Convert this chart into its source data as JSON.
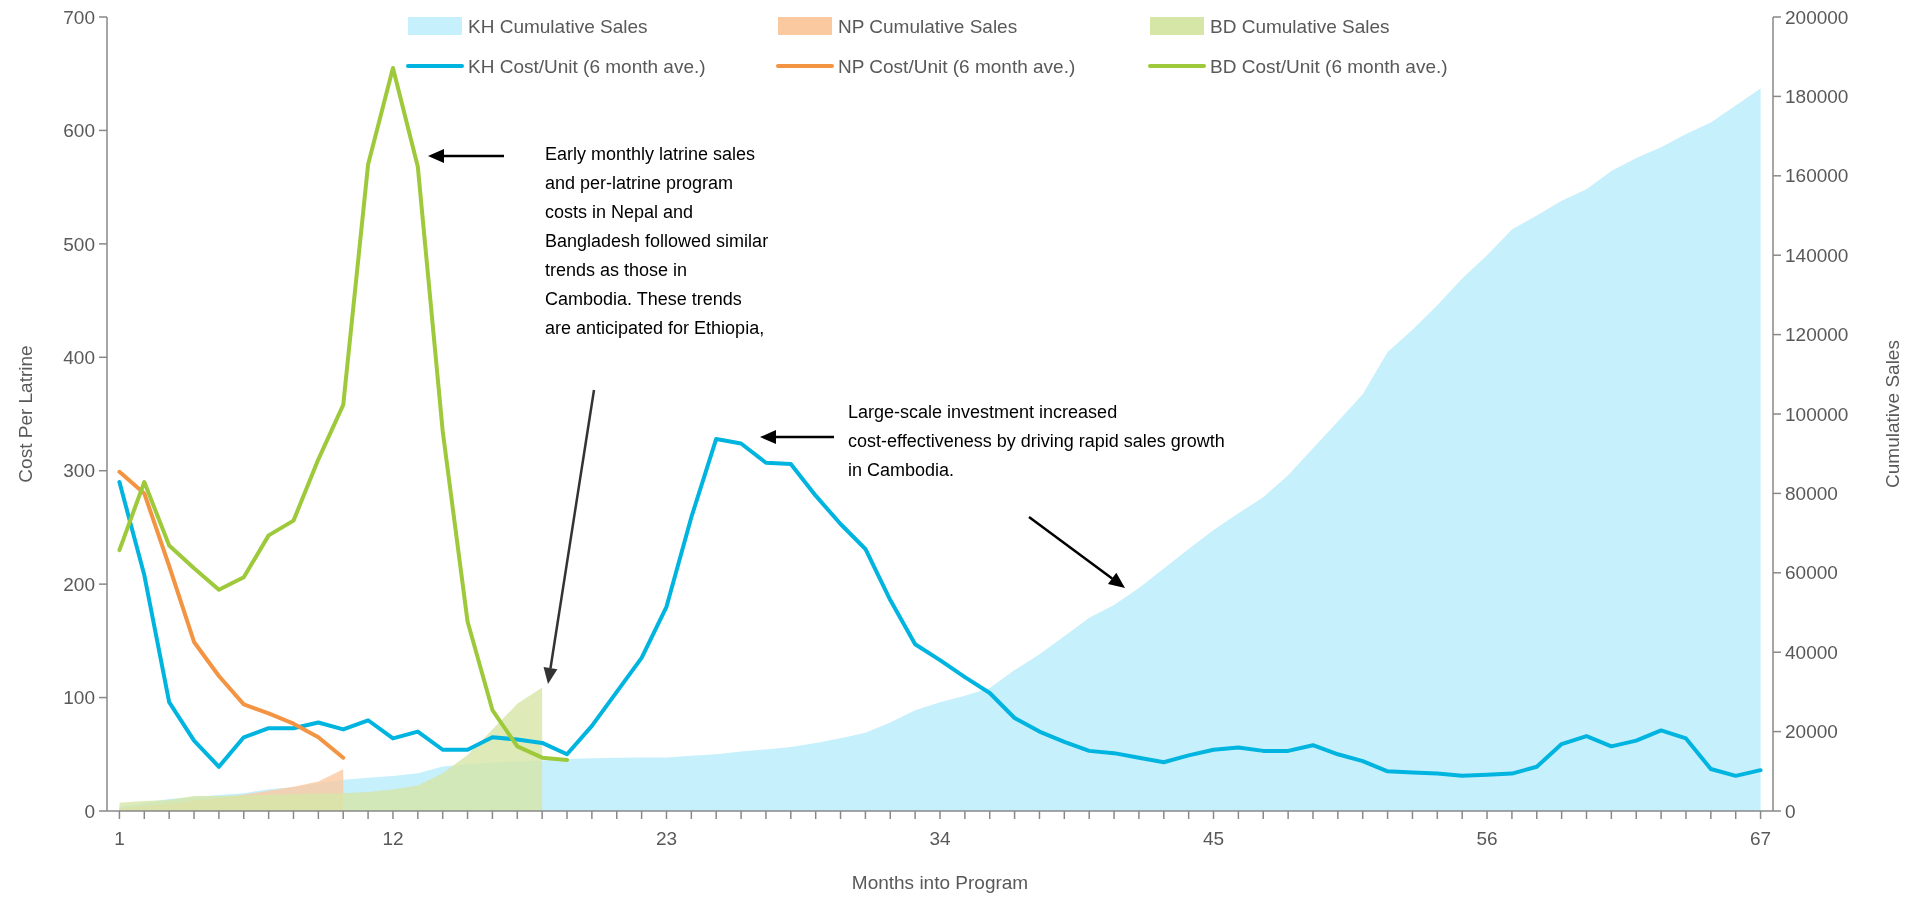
{
  "chart_data": {
    "type": "line",
    "xlabel": "Months into Program",
    "ylabel": "Cost Per Latrine",
    "y2label": "Cumulative Sales",
    "xlim": [
      0.5,
      67.5
    ],
    "xticks": [
      1,
      {
        "value": 2,
        "label": null
      },
      {
        "value": 3,
        "label": null
      },
      {
        "value": 4,
        "label": null
      },
      {
        "value": 5,
        "label": null
      },
      {
        "value": 6,
        "label": null
      },
      {
        "value": 7,
        "label": null
      },
      {
        "value": 8,
        "label": null
      },
      {
        "value": 9,
        "label": null
      },
      {
        "value": 10,
        "label": null
      },
      {
        "value": 11,
        "label": null
      },
      12,
      {
        "value": 13,
        "label": null
      },
      {
        "value": 14,
        "label": null
      },
      {
        "value": 15,
        "label": null
      },
      {
        "value": 16,
        "label": null
      },
      {
        "value": 17,
        "label": null
      },
      {
        "value": 18,
        "label": null
      },
      {
        "value": 19,
        "label": null
      },
      {
        "value": 20,
        "label": null
      },
      {
        "value": 21,
        "label": null
      },
      {
        "value": 22,
        "label": null
      },
      23,
      {
        "value": 24,
        "label": null
      },
      {
        "value": 25,
        "label": null
      },
      {
        "value": 26,
        "label": null
      },
      {
        "value": 27,
        "label": null
      },
      {
        "value": 28,
        "label": null
      },
      {
        "value": 29,
        "label": null
      },
      {
        "value": 30,
        "label": null
      },
      {
        "value": 31,
        "label": null
      },
      {
        "value": 32,
        "label": null
      },
      {
        "value": 33,
        "label": null
      },
      34,
      {
        "value": 35,
        "label": null
      },
      {
        "value": 36,
        "label": null
      },
      {
        "value": 37,
        "label": null
      },
      {
        "value": 38,
        "label": null
      },
      {
        "value": 39,
        "label": null
      },
      {
        "value": 40,
        "label": null
      },
      {
        "value": 41,
        "label": null
      },
      {
        "value": 42,
        "label": null
      },
      {
        "value": 43,
        "label": null
      },
      {
        "value": 44,
        "label": null
      },
      45,
      {
        "value": 46,
        "label": null
      },
      {
        "value": 47,
        "label": null
      },
      {
        "value": 48,
        "label": null
      },
      {
        "value": 49,
        "label": null
      },
      {
        "value": 50,
        "label": null
      },
      {
        "value": 51,
        "label": null
      },
      {
        "value": 52,
        "label": null
      },
      {
        "value": 53,
        "label": null
      },
      {
        "value": 54,
        "label": null
      },
      {
        "value": 55,
        "label": null
      },
      56,
      {
        "value": 57,
        "label": null
      },
      {
        "value": 58,
        "label": null
      },
      {
        "value": 59,
        "label": null
      },
      {
        "value": 60,
        "label": null
      },
      {
        "value": 61,
        "label": null
      },
      {
        "value": 62,
        "label": null
      },
      {
        "value": 63,
        "label": null
      },
      {
        "value": 64,
        "label": null
      },
      {
        "value": 65,
        "label": null
      },
      {
        "value": 66,
        "label": null
      },
      67
    ],
    "ylim": [
      0,
      700
    ],
    "yticks": [
      0,
      100,
      200,
      300,
      400,
      500,
      600,
      700
    ],
    "y2lim": [
      0,
      200000
    ],
    "y2ticks": [
      0,
      20000,
      40000,
      60000,
      80000,
      100000,
      120000,
      140000,
      160000,
      180000,
      200000
    ],
    "grid": false,
    "legend": "top",
    "series": [
      {
        "name": "KH Cumulative Sales",
        "type": "area",
        "axis": "y2",
        "color": "#c6f0fc",
        "x": [
          1,
          2,
          3,
          4,
          5,
          6,
          7,
          8,
          9,
          10,
          11,
          12,
          13,
          14,
          15,
          16,
          17,
          18,
          19,
          20,
          21,
          22,
          23,
          24,
          25,
          26,
          27,
          28,
          29,
          30,
          31,
          32,
          33,
          34,
          35,
          36,
          37,
          38,
          39,
          40,
          41,
          42,
          43,
          44,
          45,
          46,
          47,
          48,
          49,
          50,
          51,
          52,
          53,
          54,
          55,
          56,
          57,
          58,
          59,
          60,
          61,
          62,
          63,
          64,
          65,
          66,
          67
        ],
        "values": [
          1000,
          2000,
          3000,
          3500,
          4000,
          4500,
          5500,
          6000,
          7000,
          7900,
          8400,
          8800,
          9500,
          11200,
          11800,
          12200,
          12500,
          12700,
          13100,
          13300,
          13400,
          13500,
          13500,
          13900,
          14300,
          15000,
          15500,
          16100,
          17100,
          18300,
          19700,
          22300,
          25400,
          27400,
          29000,
          31000,
          35500,
          39500,
          44000,
          48700,
          51900,
          56200,
          61100,
          66000,
          70800,
          75000,
          79000,
          84600,
          91400,
          98100,
          105000,
          115600,
          121200,
          127400,
          134100,
          140000,
          146500,
          150000,
          153700,
          156600,
          161200,
          164500,
          167200,
          170500,
          173400,
          177700,
          182000
        ]
      },
      {
        "name": "NP Cumulative Sales",
        "type": "area",
        "axis": "y2",
        "color": "#fbc9a0",
        "x": [
          1,
          2,
          3,
          4,
          5,
          6,
          7,
          8,
          9,
          10
        ],
        "values": [
          700,
          1200,
          1800,
          2600,
          3300,
          4100,
          5100,
          6100,
          7400,
          10500
        ]
      },
      {
        "name": "BD Cumulative Sales",
        "type": "area",
        "axis": "y2",
        "color": "#d6e6a7",
        "x": [
          1,
          2,
          3,
          4,
          5,
          6,
          7,
          8,
          9,
          10,
          11,
          12,
          13,
          14,
          15,
          16,
          17,
          18
        ],
        "values": [
          2100,
          2500,
          2800,
          3800,
          3800,
          3900,
          4100,
          4300,
          4400,
          4500,
          4800,
          5400,
          6400,
          9500,
          14100,
          20500,
          27000,
          31100
        ]
      },
      {
        "name": "KH Cost/Unit (6 month ave.)",
        "type": "line",
        "axis": "y",
        "color": "#00b4e0",
        "x": [
          1,
          2,
          3,
          4,
          5,
          6,
          7,
          8,
          9,
          10,
          11,
          12,
          13,
          14,
          15,
          16,
          17,
          18,
          19,
          20,
          21,
          22,
          23,
          24,
          25,
          26,
          27,
          28,
          29,
          30,
          31,
          32,
          33,
          34,
          35,
          36,
          37,
          38,
          39,
          40,
          41,
          42,
          43,
          44,
          45,
          46,
          47,
          48,
          49,
          50,
          51,
          52,
          53,
          54,
          55,
          56,
          57,
          58,
          59,
          60,
          61,
          62,
          63,
          64,
          65,
          66,
          67
        ],
        "values": [
          290,
          208,
          96,
          62,
          39,
          65,
          73,
          73,
          78,
          72,
          80,
          64,
          70,
          54,
          54,
          65,
          63,
          60,
          50,
          75,
          105,
          135,
          180,
          259,
          328,
          324,
          307,
          306,
          278,
          253,
          231,
          186,
          147,
          133,
          118,
          104,
          82,
          70,
          61,
          53,
          51,
          47,
          43,
          49,
          54,
          56,
          53,
          53,
          58,
          50,
          44,
          35,
          34,
          33,
          31,
          32,
          33,
          39,
          59,
          66,
          57,
          62,
          71,
          64,
          37,
          31,
          36
        ]
      },
      {
        "name": "NP Cost/Unit (6 month ave.)",
        "type": "line",
        "axis": "y",
        "color": "#f39443",
        "x": [
          1,
          2,
          3,
          4,
          5,
          6,
          7,
          8,
          9,
          10
        ],
        "values": [
          299,
          280,
          216,
          149,
          119,
          94,
          86,
          77,
          65,
          47
        ]
      },
      {
        "name": "BD Cost/Unit (6 month ave.)",
        "type": "line",
        "axis": "y",
        "color": "#9dc93a",
        "x": [
          1,
          2,
          3,
          4,
          5,
          6,
          7,
          8,
          9,
          10,
          11,
          12,
          13,
          14,
          15,
          16,
          17,
          18,
          19
        ],
        "values": [
          230,
          290,
          234,
          214,
          195,
          206,
          243,
          256,
          310,
          358,
          570,
          655,
          568,
          335,
          167,
          89,
          57,
          47,
          45
        ]
      }
    ],
    "annotations": [
      "Early monthly latrine sales and per-latrine program costs in Nepal and Bangladesh followed similar trends as those in Cambodia. These trends are anticipated for Ethiopia,",
      "Large-scale investment increased cost-effectiveness by driving rapid sales growth in Cambodia."
    ]
  }
}
